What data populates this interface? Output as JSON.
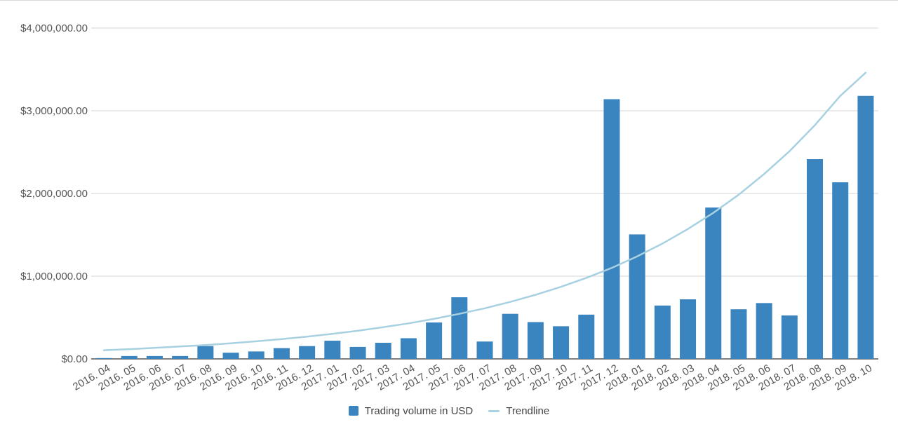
{
  "chart_data": {
    "type": "bar",
    "title": "",
    "xlabel": "",
    "ylabel": "",
    "ylim": [
      0,
      4000000
    ],
    "yticks": [
      0,
      1000000,
      2000000,
      3000000,
      4000000
    ],
    "ytick_labels": [
      "$0.00",
      "$1,000,000.00",
      "$2,000,000.00",
      "$3,000,000.00",
      "$4,000,000.00"
    ],
    "grid": true,
    "legend_position": "bottom",
    "categories": [
      "2016. 04",
      "2016. 05",
      "2016. 06",
      "2016. 07",
      "2016. 08",
      "2016. 09",
      "2016. 10",
      "2016. 11",
      "2016. 12",
      "2017. 01",
      "2017. 02",
      "2017. 03",
      "2017. 04",
      "2017. 05",
      "2017. 06",
      "2017. 07",
      "2017. 08",
      "2017. 09",
      "2017. 10",
      "2017. 11",
      "2017. 12",
      "2018. 01",
      "2018. 02",
      "2018. 03",
      "2018. 04",
      "2018. 05",
      "2018. 06",
      "2018. 07",
      "2018. 08",
      "2018. 09",
      "2018. 10"
    ],
    "series": [
      {
        "name": "Trading volume in USD",
        "type": "bar",
        "color": "#3a84c0",
        "values": [
          10000,
          35000,
          35000,
          35000,
          155000,
          75000,
          90000,
          130000,
          155000,
          220000,
          145000,
          195000,
          250000,
          440000,
          745000,
          210000,
          545000,
          445000,
          395000,
          535000,
          3140000,
          1505000,
          645000,
          720000,
          1830000,
          600000,
          675000,
          525000,
          2415000,
          2135000,
          3180000
        ]
      },
      {
        "name": "Trendline",
        "type": "line",
        "color": "#a7d1e1",
        "values": [
          105000,
          118000,
          133000,
          150000,
          168000,
          189000,
          213000,
          239000,
          269000,
          303000,
          340000,
          383000,
          430000,
          484000,
          545000,
          612000,
          689000,
          775000,
          871000,
          980000,
          1100000,
          1240000,
          1395000,
          1570000,
          1765000,
          1985000,
          2235000,
          2510000,
          2825000,
          3180000,
          3460000
        ]
      }
    ]
  }
}
